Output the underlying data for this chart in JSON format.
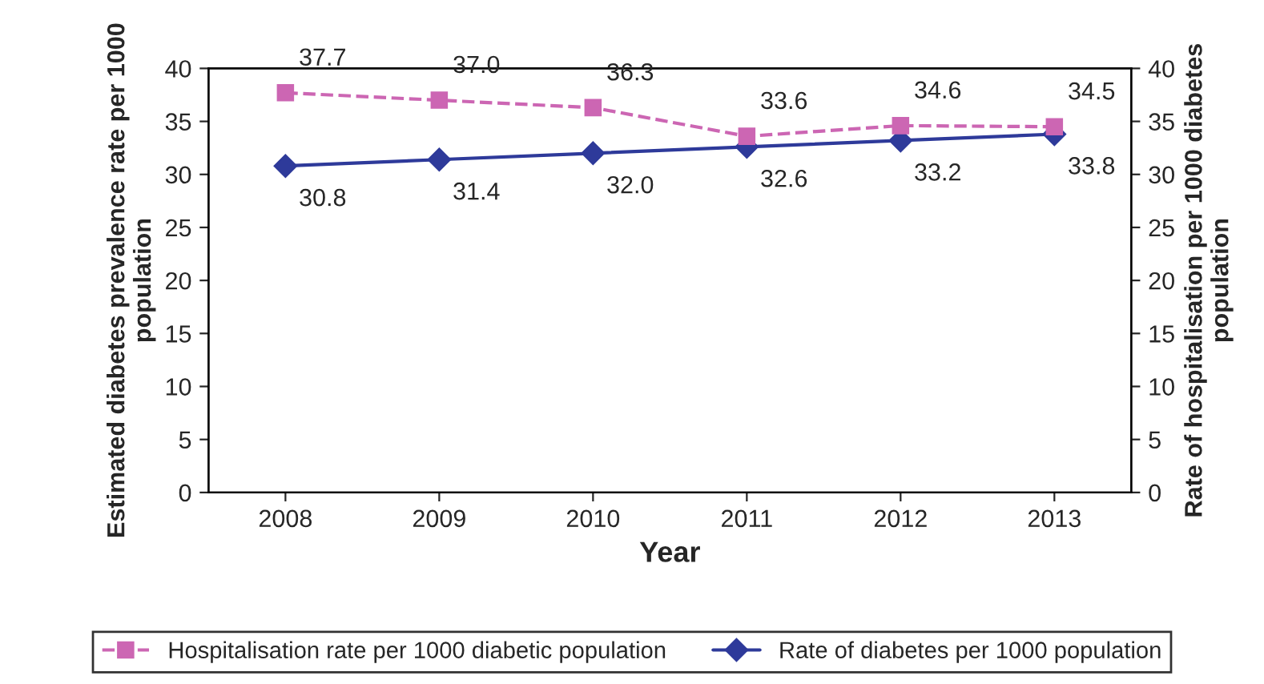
{
  "chart_data": {
    "type": "line",
    "xlabel": "Year",
    "ylabel": "Estimated diabetes prevalence rate per 1000 population",
    "y2label": "Rate of hospitalisation per 1000 diabetes population",
    "categories": [
      "2008",
      "2009",
      "2010",
      "2011",
      "2012",
      "2013"
    ],
    "series": [
      {
        "name": "Hospitalisation rate per 1000 diabetic population",
        "color": "#cc66b3",
        "axis": "y2",
        "marker": "square",
        "line_style": "dashed",
        "values": [
          37.7,
          37.0,
          36.3,
          33.6,
          34.6,
          34.5
        ],
        "value_labels": [
          "37.7",
          "37.0",
          "36.3",
          "33.6",
          "34.6",
          "34.5"
        ]
      },
      {
        "name": "Rate of diabetes per 1000 population",
        "color": "#2e3a9a",
        "marker": "diamond",
        "line_style": "solid",
        "values": [
          30.8,
          31.4,
          32.0,
          32.6,
          33.2,
          33.8
        ],
        "value_labels": [
          "30.8",
          "31.4",
          "32.0",
          "32.6",
          "33.2",
          "33.8"
        ]
      }
    ],
    "ylim": [
      0,
      40
    ],
    "yticks": [
      0,
      5,
      10,
      15,
      20,
      25,
      30,
      35,
      40
    ],
    "y2lim": [
      0,
      40
    ],
    "y2ticks": [
      0,
      5,
      10,
      15,
      20,
      25,
      30,
      35,
      40
    ],
    "grid": false,
    "legend": "bottom"
  }
}
